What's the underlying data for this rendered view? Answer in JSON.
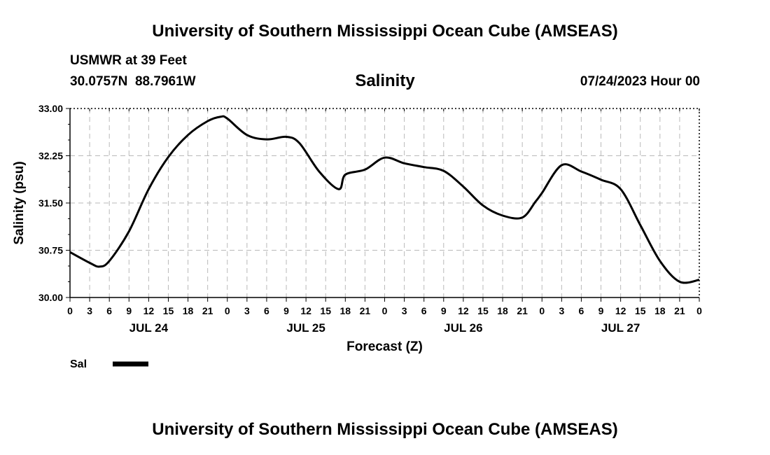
{
  "header": {
    "title": "University of Southern Mississippi Ocean Cube (AMSEAS)",
    "station": "USMWR at 39 Feet",
    "coords": "30.0757N  88.7961W",
    "datetime": "07/24/2023 Hour 00"
  },
  "footer": {
    "title": "University of Southern Mississippi Ocean Cube (AMSEAS)"
  },
  "chart_data": {
    "type": "line",
    "title": "Salinity",
    "xlabel": "Forecast (Z)",
    "ylabel": "Salinity (psu)",
    "ylim": [
      30.0,
      33.0
    ],
    "yticks": [
      "30.00",
      "30.75",
      "31.50",
      "32.25",
      "33.00"
    ],
    "xlim_hours": [
      0,
      96
    ],
    "x_tick_labels": [
      "0",
      "3",
      "6",
      "9",
      "12",
      "15",
      "18",
      "21",
      "0",
      "3",
      "6",
      "9",
      "12",
      "15",
      "18",
      "21",
      "0",
      "3",
      "6",
      "9",
      "12",
      "15",
      "18",
      "21",
      "0",
      "3",
      "6",
      "9",
      "12",
      "15",
      "18",
      "21",
      "0"
    ],
    "day_labels": [
      {
        "label": "JUL 24",
        "hour": 12
      },
      {
        "label": "JUL 25",
        "hour": 36
      },
      {
        "label": "JUL 26",
        "hour": 60
      },
      {
        "label": "JUL 27",
        "hour": 84
      }
    ],
    "legend": {
      "label": "Sal",
      "placement": "bottom-left"
    },
    "series": [
      {
        "name": "Sal",
        "color": "#000000",
        "x": [
          0,
          3,
          4.5,
          6,
          9,
          12,
          15,
          18,
          21,
          23,
          24,
          27,
          30,
          33,
          35,
          38,
          41,
          42,
          45,
          48,
          51,
          54,
          57,
          60,
          63,
          66,
          69,
          71,
          72,
          75,
          78,
          81,
          84,
          87,
          90,
          93,
          96
        ],
        "values": [
          30.72,
          30.55,
          30.49,
          30.58,
          31.05,
          31.72,
          32.23,
          32.58,
          32.8,
          32.87,
          32.84,
          32.58,
          32.51,
          32.55,
          32.45,
          32.0,
          31.72,
          31.95,
          32.03,
          32.22,
          32.13,
          32.07,
          32.01,
          31.76,
          31.46,
          31.3,
          31.27,
          31.52,
          31.66,
          32.1,
          32.0,
          31.87,
          31.72,
          31.15,
          30.58,
          30.25,
          30.28
        ]
      }
    ]
  }
}
